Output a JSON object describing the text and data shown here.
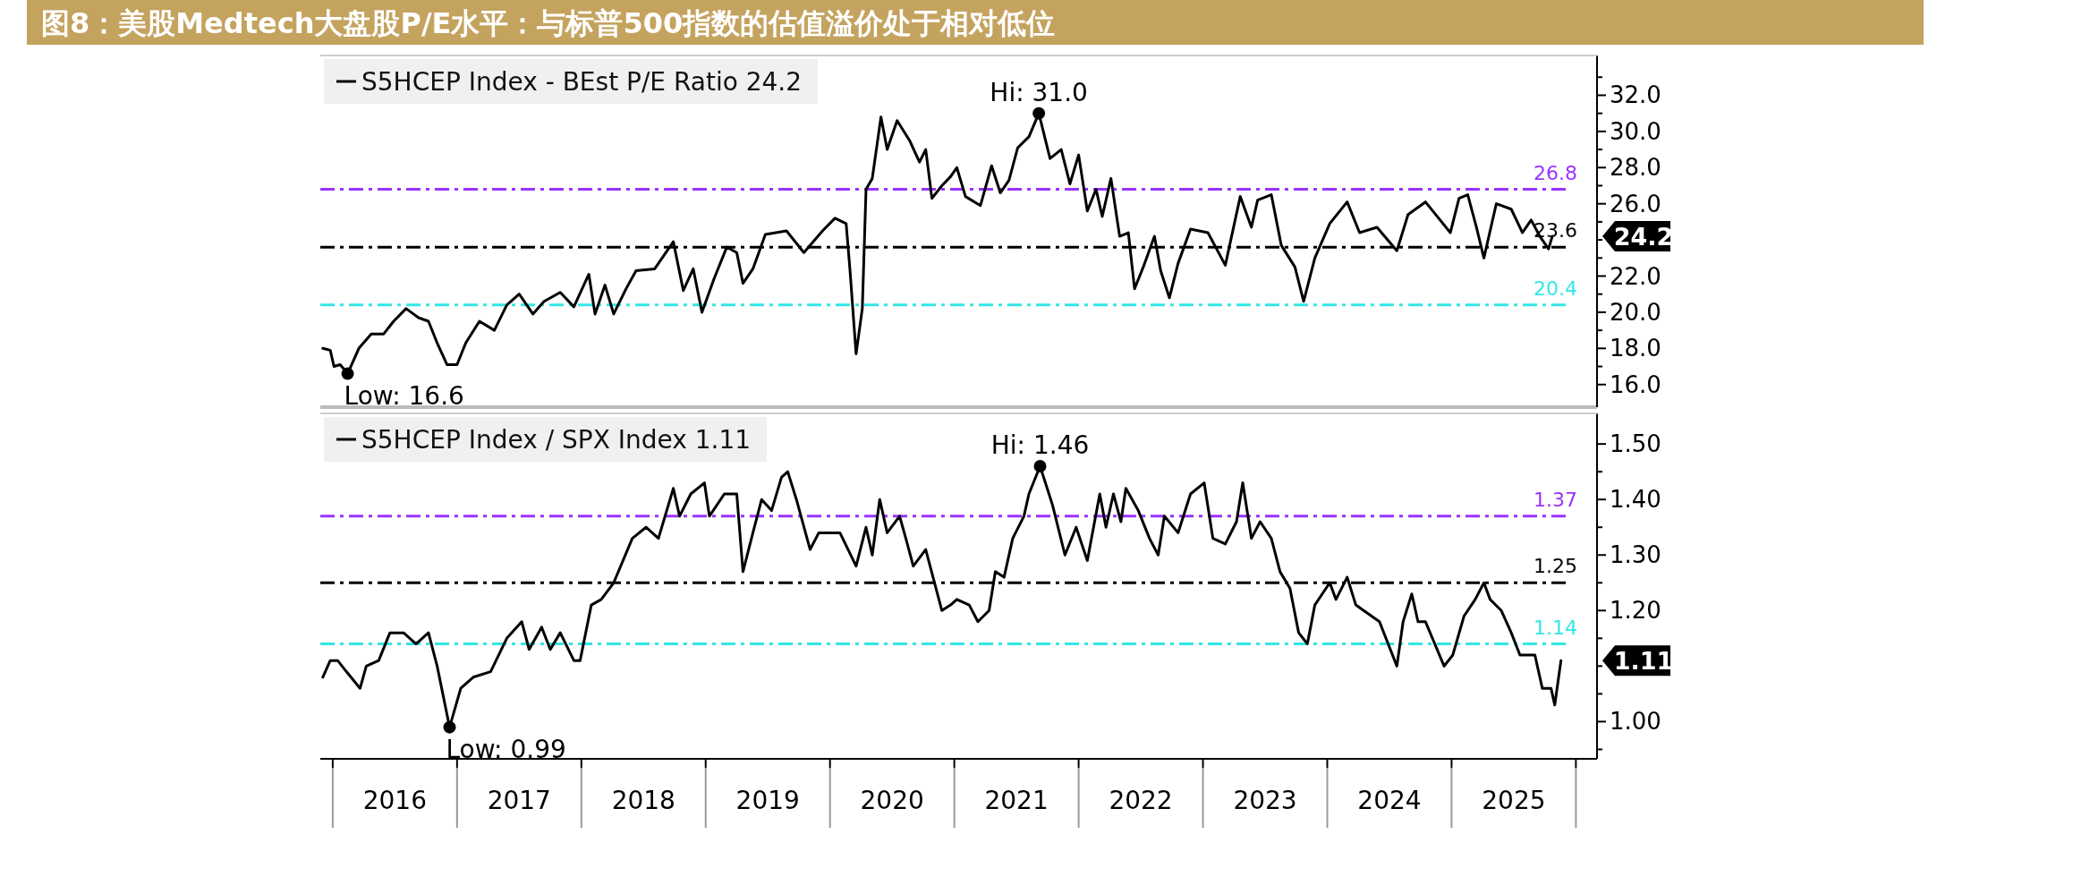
{
  "chart_data": [
    {
      "type": "line",
      "title": "图8：美股Medtech大盘股P/E水平：与标普500指数的估值溢价处于相对低位",
      "legend": "top left",
      "tick_labels": "y",
      "xlim": [
        2015.9,
        2026.17
      ],
      "ylim": [
        14.75,
        34.2
      ],
      "yticks": [
        {
          "value": 16,
          "label": "16.0"
        },
        {
          "value": 17,
          "label": null
        },
        {
          "value": 18,
          "label": "18.0"
        },
        {
          "value": 19,
          "label": null
        },
        {
          "value": 20,
          "label": "20.0"
        },
        {
          "value": 21,
          "label": null
        },
        {
          "value": 22,
          "label": "22.0"
        },
        {
          "value": 23,
          "label": null
        },
        {
          "value": 24,
          "label": null
        },
        {
          "value": 25,
          "label": null
        },
        {
          "value": 26,
          "label": "26.0"
        },
        {
          "value": 27,
          "label": null
        },
        {
          "value": 28,
          "label": "28.0"
        },
        {
          "value": 29,
          "label": null
        },
        {
          "value": 30,
          "label": "30.0"
        },
        {
          "value": 31,
          "label": null
        },
        {
          "value": 32,
          "label": "32.0"
        },
        {
          "value": 33,
          "label": null
        }
      ],
      "ref_lines": [
        {
          "axis": "y",
          "value": 26.8,
          "label": "26.8",
          "color": "#9933ff",
          "line_style": "dashed"
        },
        {
          "axis": "y",
          "value": 23.6,
          "label": "23.6",
          "color": "#000000",
          "line_style": "dashed"
        },
        {
          "axis": "y",
          "value": 20.4,
          "label": "20.4",
          "color": "#33e6e6",
          "line_style": "dashed"
        }
      ],
      "annotations": [
        {
          "text": "Hi: 31.0",
          "x": 2021.68,
          "y": 31.0
        },
        {
          "text": "Low: 16.6",
          "x": 2016.12,
          "y": 16.6
        },
        {
          "text": "24.2",
          "x": 2025.81,
          "y": 24.2
        }
      ],
      "series": [
        {
          "name": "S5HCEP Index - BEst P/E Ratio 24.2",
          "color": "#000000",
          "x": [
            2015.92,
            2015.98,
            2016.01,
            2016.06,
            2016.12,
            2016.21,
            2016.31,
            2016.41,
            2016.49,
            2016.59,
            2016.69,
            2016.77,
            2016.84,
            2016.92,
            2017.0,
            2017.07,
            2017.18,
            2017.3,
            2017.4,
            2017.5,
            2017.61,
            2017.7,
            2017.83,
            2017.94,
            2018.06,
            2018.11,
            2018.19,
            2018.26,
            2018.36,
            2018.44,
            2018.59,
            2018.74,
            2018.82,
            2018.9,
            2018.97,
            2019.07,
            2019.17,
            2019.25,
            2019.3,
            2019.38,
            2019.48,
            2019.65,
            2019.79,
            2019.94,
            2020.04,
            2020.13,
            2020.16,
            2020.21,
            2020.26,
            2020.29,
            2020.34,
            2020.41,
            2020.46,
            2020.54,
            2020.64,
            2020.72,
            2020.77,
            2020.82,
            2020.9,
            2020.97,
            2021.02,
            2021.09,
            2021.21,
            2021.3,
            2021.37,
            2021.44,
            2021.51,
            2021.6,
            2021.68,
            2021.77,
            2021.86,
            2021.93,
            2022.0,
            2022.07,
            2022.14,
            2022.19,
            2022.26,
            2022.33,
            2022.4,
            2022.45,
            2022.52,
            2022.61,
            2022.66,
            2022.73,
            2022.8,
            2022.9,
            2023.04,
            2023.18,
            2023.3,
            2023.39,
            2023.44,
            2023.55,
            2023.63,
            2023.74,
            2023.81,
            2023.9,
            2024.02,
            2024.16,
            2024.26,
            2024.4,
            2024.56,
            2024.65,
            2024.79,
            2024.99,
            2025.06,
            2025.13,
            2025.2,
            2025.26,
            2025.36,
            2025.48,
            2025.57,
            2025.64,
            2025.71,
            2025.78,
            2025.81
          ],
          "values": [
            18.0,
            17.9,
            17.0,
            17.1,
            16.6,
            18.0,
            18.8,
            18.8,
            19.5,
            20.2,
            19.7,
            19.5,
            18.3,
            17.1,
            17.1,
            18.3,
            19.5,
            19.0,
            20.4,
            21.0,
            19.9,
            20.6,
            21.1,
            20.3,
            22.1,
            19.9,
            21.5,
            19.9,
            21.3,
            22.3,
            22.4,
            23.9,
            21.2,
            22.4,
            20.0,
            21.9,
            23.6,
            23.3,
            21.6,
            22.4,
            24.3,
            24.5,
            23.3,
            24.5,
            25.2,
            24.9,
            22.4,
            17.7,
            20.2,
            26.8,
            27.4,
            30.8,
            29.0,
            30.6,
            29.5,
            28.3,
            29.0,
            26.3,
            27.0,
            27.5,
            28.0,
            26.4,
            25.9,
            28.1,
            26.6,
            27.3,
            29.1,
            29.7,
            31.0,
            28.5,
            29.0,
            27.1,
            28.7,
            25.6,
            26.8,
            25.3,
            27.4,
            24.2,
            24.4,
            21.3,
            22.5,
            24.2,
            22.3,
            20.8,
            22.7,
            24.6,
            24.4,
            22.6,
            26.4,
            24.7,
            26.2,
            26.5,
            23.7,
            22.5,
            20.6,
            23.0,
            24.9,
            26.1,
            24.4,
            24.7,
            23.4,
            25.4,
            26.1,
            24.4,
            26.3,
            26.5,
            24.7,
            23.0,
            26.0,
            25.7,
            24.4,
            25.1,
            24.2,
            23.5,
            24.2
          ]
        }
      ]
    },
    {
      "type": "line",
      "legend": "top left",
      "xlim": [
        2015.9,
        2026.17
      ],
      "ylim": [
        0.933,
        1.555
      ],
      "xticks": [
        {
          "value": 2016,
          "label": null
        },
        {
          "value": 2016.5,
          "label": "2016"
        },
        {
          "value": 2017,
          "label": null
        },
        {
          "value": 2017.5,
          "label": "2017"
        },
        {
          "value": 2018,
          "label": null
        },
        {
          "value": 2018.5,
          "label": "2018"
        },
        {
          "value": 2019,
          "label": null
        },
        {
          "value": 2019.5,
          "label": "2019"
        },
        {
          "value": 2020,
          "label": null
        },
        {
          "value": 2020.5,
          "label": "2020"
        },
        {
          "value": 2021,
          "label": null
        },
        {
          "value": 2021.5,
          "label": "2021"
        },
        {
          "value": 2022,
          "label": null
        },
        {
          "value": 2022.5,
          "label": "2022"
        },
        {
          "value": 2023,
          "label": null
        },
        {
          "value": 2023.5,
          "label": "2023"
        },
        {
          "value": 2024,
          "label": null
        },
        {
          "value": 2024.5,
          "label": "2024"
        },
        {
          "value": 2025,
          "label": null
        },
        {
          "value": 2025.5,
          "label": "2025"
        },
        {
          "value": 2026,
          "label": null
        }
      ],
      "yticks": [
        {
          "value": 0.95,
          "label": null
        },
        {
          "value": 1.0,
          "label": "1.00"
        },
        {
          "value": 1.05,
          "label": null
        },
        {
          "value": 1.1,
          "label": null
        },
        {
          "value": 1.15,
          "label": null
        },
        {
          "value": 1.2,
          "label": "1.20"
        },
        {
          "value": 1.25,
          "label": null
        },
        {
          "value": 1.3,
          "label": "1.30"
        },
        {
          "value": 1.35,
          "label": null
        },
        {
          "value": 1.4,
          "label": "1.40"
        },
        {
          "value": 1.45,
          "label": null
        },
        {
          "value": 1.5,
          "label": "1.50"
        }
      ],
      "ref_lines": [
        {
          "axis": "y",
          "value": 1.37,
          "label": "1.37",
          "color": "#9933ff",
          "line_style": "dashed"
        },
        {
          "axis": "y",
          "value": 1.25,
          "label": "1.25",
          "color": "#000000",
          "line_style": "dashed"
        },
        {
          "axis": "y",
          "value": 1.14,
          "label": "1.14",
          "color": "#33e6e6",
          "line_style": "dashed"
        }
      ],
      "annotations": [
        {
          "text": "Hi: 1.46",
          "x": 2021.69,
          "y": 1.46
        },
        {
          "text": "Low: 0.99",
          "x": 2016.94,
          "y": 0.99
        },
        {
          "text": "1.11",
          "x": 2025.88,
          "y": 1.11
        }
      ],
      "series": [
        {
          "name": "S5HCEP Index / SPX Index 1.11",
          "color": "#000000",
          "x": [
            2015.92,
            2015.98,
            2016.04,
            2016.11,
            2016.22,
            2016.27,
            2016.37,
            2016.46,
            2016.57,
            2016.67,
            2016.77,
            2016.84,
            2016.94,
            2017.03,
            2017.13,
            2017.27,
            2017.4,
            2017.52,
            2017.58,
            2017.68,
            2017.75,
            2017.83,
            2017.94,
            2017.99,
            2018.08,
            2018.16,
            2018.26,
            2018.41,
            2018.52,
            2018.62,
            2018.74,
            2018.79,
            2018.88,
            2018.99,
            2019.03,
            2019.15,
            2019.25,
            2019.3,
            2019.38,
            2019.45,
            2019.53,
            2019.61,
            2019.66,
            2019.73,
            2019.84,
            2019.91,
            2020.08,
            2020.21,
            2020.29,
            2020.34,
            2020.4,
            2020.46,
            2020.56,
            2020.61,
            2020.67,
            2020.77,
            2020.9,
            2020.97,
            2021.02,
            2021.12,
            2021.19,
            2021.28,
            2021.33,
            2021.4,
            2021.47,
            2021.56,
            2021.6,
            2021.69,
            2021.79,
            2021.89,
            2021.98,
            2022.07,
            2022.17,
            2022.22,
            2022.28,
            2022.34,
            2022.38,
            2022.48,
            2022.57,
            2022.64,
            2022.69,
            2022.8,
            2022.9,
            2023.01,
            2023.08,
            2023.18,
            2023.27,
            2023.32,
            2023.39,
            2023.46,
            2023.55,
            2023.62,
            2023.7,
            2023.77,
            2023.84,
            2023.9,
            2024.02,
            2024.07,
            2024.16,
            2024.23,
            2024.42,
            2024.56,
            2024.61,
            2024.68,
            2024.73,
            2024.79,
            2024.94,
            2025.01,
            2025.1,
            2025.19,
            2025.26,
            2025.31,
            2025.4,
            2025.48,
            2025.55,
            2025.67,
            2025.73,
            2025.8,
            2025.83,
            2025.88
          ],
          "values": [
            1.08,
            1.11,
            1.11,
            1.09,
            1.06,
            1.1,
            1.11,
            1.16,
            1.16,
            1.14,
            1.16,
            1.1,
            0.99,
            1.06,
            1.08,
            1.09,
            1.15,
            1.18,
            1.13,
            1.17,
            1.13,
            1.16,
            1.11,
            1.11,
            1.21,
            1.22,
            1.25,
            1.33,
            1.35,
            1.33,
            1.42,
            1.37,
            1.41,
            1.43,
            1.37,
            1.41,
            1.41,
            1.27,
            1.34,
            1.4,
            1.38,
            1.44,
            1.45,
            1.4,
            1.31,
            1.34,
            1.34,
            1.28,
            1.35,
            1.3,
            1.4,
            1.34,
            1.37,
            1.33,
            1.28,
            1.31,
            1.2,
            1.21,
            1.22,
            1.21,
            1.18,
            1.2,
            1.27,
            1.26,
            1.33,
            1.37,
            1.41,
            1.46,
            1.39,
            1.3,
            1.35,
            1.29,
            1.41,
            1.35,
            1.41,
            1.36,
            1.42,
            1.38,
            1.33,
            1.3,
            1.37,
            1.34,
            1.41,
            1.43,
            1.33,
            1.32,
            1.36,
            1.43,
            1.33,
            1.36,
            1.33,
            1.27,
            1.24,
            1.16,
            1.14,
            1.21,
            1.25,
            1.22,
            1.26,
            1.21,
            1.18,
            1.1,
            1.18,
            1.23,
            1.18,
            1.18,
            1.1,
            1.12,
            1.19,
            1.22,
            1.25,
            1.22,
            1.2,
            1.16,
            1.12,
            1.12,
            1.06,
            1.06,
            1.03,
            1.11
          ]
        }
      ]
    }
  ]
}
